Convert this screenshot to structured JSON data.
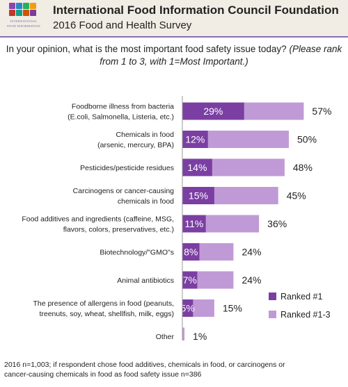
{
  "header": {
    "org_title": "International Food Information Council Foundation",
    "survey_title": "2016 Food and Health Survey",
    "logo_line1": "INTERNATIONAL",
    "logo_line2": "FOOD INFORMATION",
    "logo_tile_colors": [
      "#8e44ad",
      "#2e86c1",
      "#27ae60",
      "#f39c12",
      "#c0392b",
      "#16a085",
      "#d35400",
      "#7d3c98"
    ]
  },
  "question": {
    "text": "In your opinion, what is the most important food safety issue today?",
    "instruction": "(Please rank from 1 to 3, with 1=Most Important.)"
  },
  "chart_data": {
    "type": "bar",
    "orientation": "horizontal",
    "stacking": "overlay",
    "categories": [
      [
        "Foodborne illness from bacteria",
        "(E.coli, Salmonella, Listeria, etc.)"
      ],
      [
        "Chemicals in food",
        "(arsenic, mercury, BPA)"
      ],
      [
        "Pesticides/pesticide residues"
      ],
      [
        "Carcinogens or cancer-causing",
        "chemicals in food"
      ],
      [
        "Food additives and ingredients (caffeine, MSG,",
        "flavors, colors, preservatives, etc.)"
      ],
      [
        "Biotechnology/\"GMO\"s"
      ],
      [
        "Animal antibiotics"
      ],
      [
        "The presence of allergens in food (peanuts,",
        "treenuts, soy, wheat, shellfish, milk, eggs)"
      ],
      [
        "Other"
      ]
    ],
    "series": [
      {
        "name": "Ranked #1",
        "values": [
          29,
          12,
          14,
          15,
          11,
          8,
          7,
          5,
          null
        ],
        "color": "#7b3fa3"
      },
      {
        "name": "Ranked #1-3",
        "values": [
          57,
          50,
          48,
          45,
          36,
          24,
          24,
          15,
          1
        ],
        "color": "#c09ad6"
      }
    ],
    "legend_position": "bottom-right",
    "grid": false
  },
  "footnote": {
    "line1": "2016 n=1,003; if respondent chose food additives, chemicals in food, or carcinogens or",
    "line2": "cancer-causing chemicals in food as food safety issue n=386"
  }
}
